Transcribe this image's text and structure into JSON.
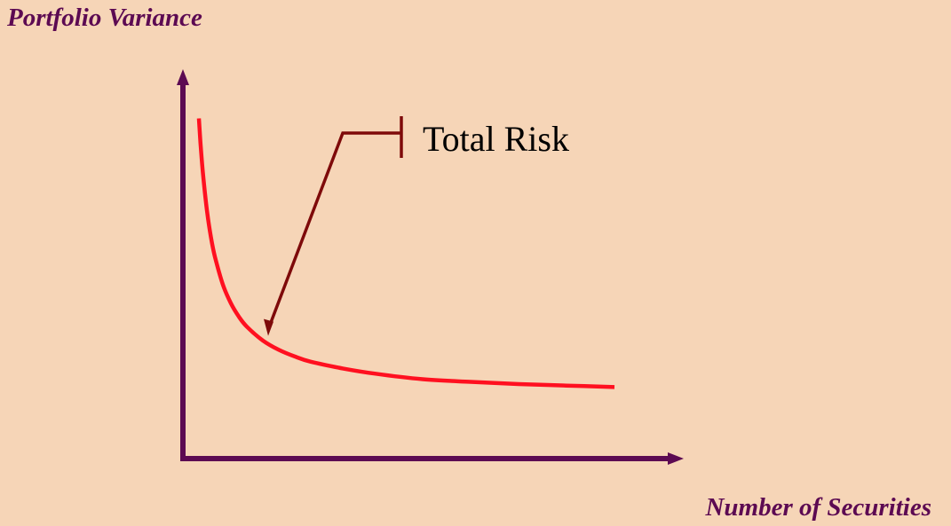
{
  "colors": {
    "background": "#f6d5b7",
    "axis": "#5c0a52",
    "curve": "#ff1020",
    "callout": "#7e0a0a",
    "label_text": "#5c0a52"
  },
  "chart_data": {
    "type": "line",
    "title": "",
    "xlabel": "Number of Securities",
    "ylabel": "Portfolio Variance",
    "x_ticks_shown": false,
    "y_ticks_shown": false,
    "grid": false,
    "legend": "none",
    "xlim": [
      0,
      30
    ],
    "ylim": [
      0,
      10
    ],
    "series": [
      {
        "x": [
          1,
          1.1,
          1.25,
          1.5,
          1.75,
          2,
          2.5,
          3,
          3.5,
          4,
          5,
          6,
          7,
          8,
          10,
          12,
          15,
          18,
          21,
          24,
          27
        ],
        "y": [
          9.13,
          8.46,
          7.67,
          6.67,
          5.95,
          5.42,
          4.67,
          4.17,
          3.81,
          3.54,
          3.17,
          2.92,
          2.74,
          2.6,
          2.42,
          2.28,
          2.13,
          2.06,
          2.0,
          1.96,
          1.92
        ]
      }
    ],
    "annotations": [
      {
        "text": "Total Risk",
        "x": 5,
        "y": 3.2
      }
    ]
  }
}
